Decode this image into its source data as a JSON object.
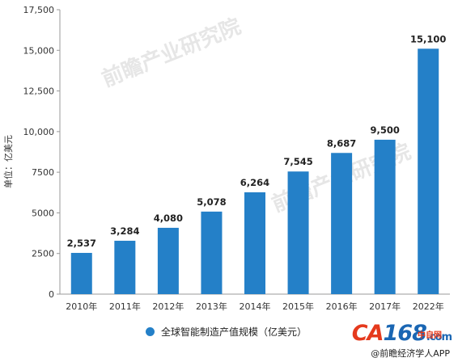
{
  "chart_data": {
    "type": "bar",
    "categories": [
      "2010年",
      "2011年",
      "2012年",
      "2013年",
      "2014年",
      "2015年",
      "2016年",
      "2017年",
      "2022年"
    ],
    "values": [
      2537,
      3284,
      4080,
      5078,
      6264,
      7545,
      8687,
      9500,
      15100
    ],
    "value_labels": [
      "2,537",
      "3,284",
      "4,080",
      "5,078",
      "6,264",
      "7,545",
      "8,687",
      "9,500",
      "15,100"
    ],
    "ylabel": "单位：亿美元",
    "ylim": [
      0,
      17500
    ],
    "yticks": [
      0,
      2500,
      5000,
      7500,
      10000,
      12500,
      15000,
      17500
    ],
    "ytick_labels": [
      "0",
      "2500",
      "5000",
      "7500",
      "10,000",
      "12,500",
      "15,000",
      "17,500"
    ],
    "series": [
      {
        "name": "全球智能制造产值规模（亿美元）"
      }
    ],
    "color": "#2480c8",
    "legend_position": "bottom",
    "grid": false
  },
  "watermark": "前瞻产业研究院",
  "branding": {
    "logo_a": "CA",
    "logo_b": "168",
    "logo_c": ".com",
    "logo_cn": "中自网",
    "credit": "@前瞻经济学人APP"
  }
}
